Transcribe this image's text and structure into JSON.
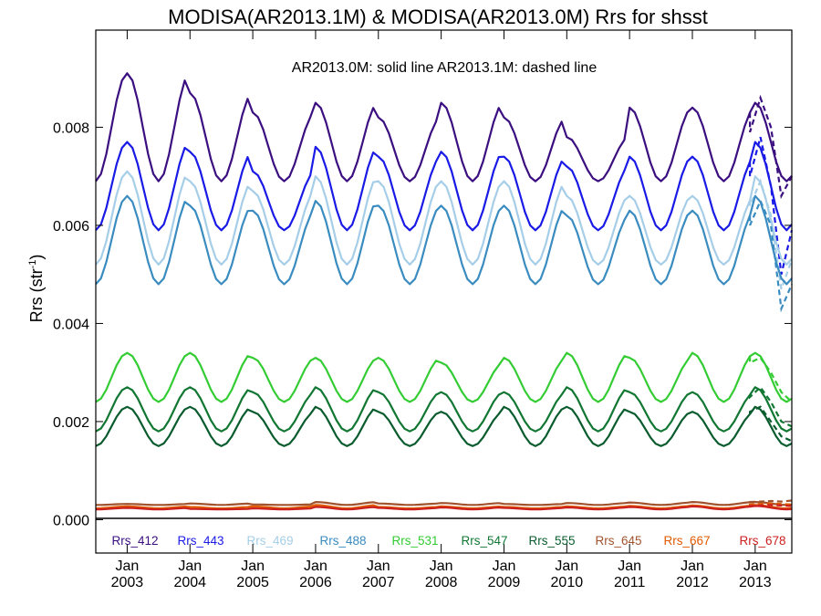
{
  "chart_data": {
    "type": "line",
    "title": "MODISA(AR2013.1M) & MODISA(AR2013.0M)  Rrs for shsst",
    "note": "AR2013.0M: solid line   AR2013.1M: dashed line",
    "ylabel": "Rrs (str",
    "ylabel_sup": "-1",
    "ylabel_close": ")",
    "ylim": [
      -0.00068,
      0.00998
    ],
    "y_ticks": [
      "0.000",
      "0.002",
      "0.004",
      "0.006",
      "0.008"
    ],
    "x_ticks": [
      {
        "month": "Jan",
        "year": "2003"
      },
      {
        "month": "Jan",
        "year": "2004"
      },
      {
        "month": "Jan",
        "year": "2005"
      },
      {
        "month": "Jan",
        "year": "2006"
      },
      {
        "month": "Jan",
        "year": "2007"
      },
      {
        "month": "Jan",
        "year": "2008"
      },
      {
        "month": "Jan",
        "year": "2009"
      },
      {
        "month": "Jan",
        "year": "2010"
      },
      {
        "month": "Jan",
        "year": "2011"
      },
      {
        "month": "Jan",
        "year": "2012"
      },
      {
        "month": "Jan",
        "year": "2013"
      }
    ],
    "x_range": [
      "2002-07",
      "2013-08"
    ],
    "zero_line": true,
    "grid": false,
    "legend_position": "bottom",
    "series": [
      {
        "name": "Rrs_412",
        "color": "#3b0f80",
        "base": 0.0076,
        "amplitude": 0.0007,
        "peak_jan": [
          0.0091,
          0.0087,
          0.0083,
          0.0085,
          0.0082,
          0.0085,
          0.0082,
          0.0078,
          0.0084,
          0.0084,
          0.0085
        ],
        "dashed_divergence": [
          0.0079,
          0.0086,
          0.008,
          0.0066,
          0.007
        ]
      },
      {
        "name": "Rrs_443",
        "color": "#1a1ae6",
        "base": 0.0066,
        "amplitude": 0.0007,
        "peak_jan": [
          0.0077,
          0.0075,
          0.0071,
          0.0076,
          0.0074,
          0.0075,
          0.0074,
          0.0072,
          0.0074,
          0.0074,
          0.0077
        ],
        "dashed_divergence": [
          0.007,
          0.0078,
          0.0068,
          0.005,
          0.0059
        ]
      },
      {
        "name": "Rrs_469",
        "color": "#a6cee8",
        "base": 0.0058,
        "amplitude": 0.0006,
        "peak_jan": [
          0.0071,
          0.0069,
          0.0067,
          0.007,
          0.0069,
          0.0069,
          0.0069,
          0.0066,
          0.0066,
          0.0066,
          0.007
        ],
        "dashed_divergence": [
          0.0064,
          0.0069,
          0.0062,
          0.0047,
          0.0053
        ]
      },
      {
        "name": "Rrs_488",
        "color": "#3a8cc0",
        "base": 0.0055,
        "amplitude": 0.0007,
        "peak_jan": [
          0.0066,
          0.0064,
          0.0063,
          0.0065,
          0.0064,
          0.0064,
          0.0064,
          0.0062,
          0.0063,
          0.0063,
          0.0066
        ],
        "dashed_divergence": [
          0.006,
          0.0065,
          0.006,
          0.0043,
          0.0048
        ]
      },
      {
        "name": "Rrs_531",
        "color": "#33cc33",
        "base": 0.0029,
        "amplitude": 0.0005,
        "peak_jan": [
          0.0034,
          0.0034,
          0.0033,
          0.0033,
          0.0033,
          0.0032,
          0.0033,
          0.0034,
          0.0033,
          0.0034,
          0.0034
        ],
        "dashed_divergence": [
          0.0032,
          0.0033,
          0.003,
          0.0026,
          0.0024
        ]
      },
      {
        "name": "Rrs_547",
        "color": "#117733",
        "base": 0.0022,
        "amplitude": 0.0004,
        "peak_jan": [
          0.0027,
          0.0027,
          0.0026,
          0.0027,
          0.0026,
          0.0026,
          0.0026,
          0.0027,
          0.0026,
          0.0026,
          0.0027
        ],
        "dashed_divergence": [
          0.0025,
          0.0027,
          0.0024,
          0.002,
          0.0019
        ]
      },
      {
        "name": "Rrs_555",
        "color": "#0a5c2e",
        "base": 0.0019,
        "amplitude": 0.0004,
        "peak_jan": [
          0.0023,
          0.0023,
          0.0022,
          0.0023,
          0.0022,
          0.0022,
          0.0023,
          0.0023,
          0.0022,
          0.0022,
          0.0023
        ],
        "dashed_divergence": [
          0.0022,
          0.0023,
          0.002,
          0.0017,
          0.0016
        ]
      },
      {
        "name": "Rrs_645",
        "color": "#a0522d",
        "base": 0.00033,
        "amplitude": 3e-05,
        "peak_jan": [
          0.00032,
          0.00033,
          0.00031,
          0.00036,
          0.00033,
          0.00034,
          0.00032,
          0.00034,
          0.00035,
          0.00036,
          0.00036
        ],
        "dashed_divergence": [
          0.00036,
          0.00037,
          0.00038,
          0.00037,
          0.00039
        ]
      },
      {
        "name": "Rrs_667",
        "color": "#e05a00",
        "base": 0.00027,
        "amplitude": 4e-05,
        "peak_jan": [
          0.00027,
          0.00026,
          0.00027,
          0.0003,
          0.00026,
          0.00027,
          0.00026,
          0.00027,
          0.00028,
          0.00029,
          0.0003
        ],
        "dashed_divergence": [
          0.00031,
          0.00032,
          0.00033,
          0.00032,
          0.00031
        ]
      },
      {
        "name": "Rrs_678",
        "color": "#cc1f1f",
        "base": 0.00025,
        "amplitude": 4e-05,
        "peak_jan": [
          0.00024,
          0.00022,
          0.00023,
          0.00026,
          0.00024,
          0.00025,
          0.00024,
          0.00025,
          0.00026,
          0.00027,
          0.00028
        ],
        "dashed_divergence": [
          0.00028,
          0.00029,
          0.0003,
          0.00029,
          0.00028
        ]
      }
    ]
  }
}
